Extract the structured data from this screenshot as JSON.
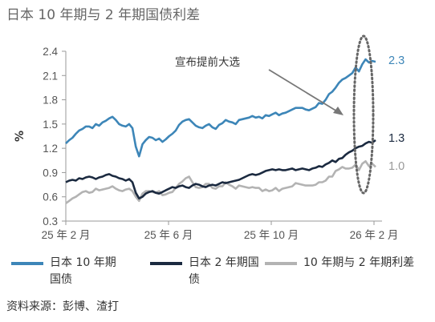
{
  "title": "日本 10 年期与 2 年期国债利差",
  "source": "资料来源：彭博、渣打",
  "chart_data": {
    "type": "line",
    "ylabel": "%",
    "ylim": [
      0.3,
      2.4
    ],
    "yticks": [
      "0.3",
      "0.6",
      "0.9",
      "1.2",
      "1.5",
      "1.8",
      "2.1",
      "2.4"
    ],
    "xtick_labels": [
      "25 年 2 月",
      "25 年 6 月",
      "25 年 10 月",
      "26 年 2 月"
    ],
    "annotation": "宣布提前大选",
    "colors": {
      "jgb10": "#3d86b8",
      "jgb2": "#1b2a40",
      "spread": "#b3b3b3",
      "ellipse": "#666666"
    },
    "series": [
      {
        "key": "jgb10",
        "name": "日本 10 年期国债",
        "end_label": "2.3",
        "values": [
          1.26,
          1.3,
          1.33,
          1.38,
          1.42,
          1.44,
          1.47,
          1.47,
          1.45,
          1.5,
          1.48,
          1.52,
          1.54,
          1.57,
          1.59,
          1.55,
          1.5,
          1.48,
          1.47,
          1.5,
          1.45,
          1.22,
          1.1,
          1.25,
          1.3,
          1.34,
          1.33,
          1.3,
          1.32,
          1.28,
          1.31,
          1.35,
          1.38,
          1.42,
          1.49,
          1.53,
          1.55,
          1.56,
          1.52,
          1.48,
          1.46,
          1.45,
          1.48,
          1.5,
          1.46,
          1.44,
          1.49,
          1.51,
          1.55,
          1.53,
          1.52,
          1.5,
          1.55,
          1.56,
          1.57,
          1.58,
          1.6,
          1.58,
          1.59,
          1.57,
          1.61,
          1.6,
          1.62,
          1.64,
          1.61,
          1.63,
          1.64,
          1.66,
          1.68,
          1.7,
          1.7,
          1.7,
          1.68,
          1.67,
          1.69,
          1.71,
          1.76,
          1.75,
          1.8,
          1.87,
          1.9,
          1.95,
          2.01,
          2.05,
          2.07,
          2.1,
          2.13,
          2.2,
          2.15,
          2.24,
          2.3,
          2.26,
          2.28,
          2.27
        ]
      },
      {
        "key": "jgb2",
        "name": "日本 2 年期国债",
        "end_label": "1.3",
        "values": [
          0.78,
          0.8,
          0.81,
          0.8,
          0.83,
          0.82,
          0.84,
          0.85,
          0.84,
          0.82,
          0.84,
          0.85,
          0.87,
          0.88,
          0.86,
          0.85,
          0.83,
          0.82,
          0.8,
          0.82,
          0.78,
          0.65,
          0.58,
          0.6,
          0.64,
          0.66,
          0.67,
          0.65,
          0.64,
          0.66,
          0.68,
          0.7,
          0.72,
          0.71,
          0.73,
          0.74,
          0.72,
          0.71,
          0.74,
          0.76,
          0.75,
          0.73,
          0.72,
          0.74,
          0.75,
          0.74,
          0.76,
          0.78,
          0.77,
          0.78,
          0.79,
          0.8,
          0.81,
          0.83,
          0.85,
          0.87,
          0.88,
          0.87,
          0.88,
          0.9,
          0.92,
          0.93,
          0.94,
          0.93,
          0.94,
          0.93,
          0.93,
          0.94,
          0.95,
          0.93,
          0.94,
          0.95,
          0.94,
          0.93,
          0.95,
          0.96,
          0.98,
          0.97,
          1.0,
          1.02,
          1.05,
          1.03,
          1.07,
          1.08,
          1.12,
          1.15,
          1.17,
          1.2,
          1.22,
          1.23,
          1.26,
          1.28,
          1.27,
          1.3
        ]
      },
      {
        "key": "spread",
        "name": "10 年期与 2 年期利差",
        "end_label": "1.0",
        "values": [
          0.52,
          0.55,
          0.58,
          0.6,
          0.63,
          0.66,
          0.67,
          0.65,
          0.66,
          0.7,
          0.68,
          0.69,
          0.7,
          0.71,
          0.73,
          0.7,
          0.68,
          0.67,
          0.69,
          0.7,
          0.67,
          0.6,
          0.55,
          0.64,
          0.67,
          0.67,
          0.66,
          0.65,
          0.67,
          0.62,
          0.63,
          0.65,
          0.66,
          0.71,
          0.76,
          0.79,
          0.83,
          0.85,
          0.78,
          0.72,
          0.71,
          0.72,
          0.76,
          0.76,
          0.71,
          0.7,
          0.73,
          0.73,
          0.78,
          0.75,
          0.73,
          0.7,
          0.74,
          0.73,
          0.72,
          0.71,
          0.72,
          0.71,
          0.71,
          0.67,
          0.69,
          0.67,
          0.68,
          0.71,
          0.67,
          0.7,
          0.71,
          0.72,
          0.73,
          0.77,
          0.76,
          0.75,
          0.74,
          0.74,
          0.74,
          0.75,
          0.78,
          0.78,
          0.8,
          0.85,
          0.85,
          0.92,
          0.94,
          0.97,
          0.95,
          0.95,
          0.96,
          1.0,
          0.93,
          1.01,
          1.04,
          0.98,
          1.01,
          0.97
        ]
      }
    ]
  }
}
